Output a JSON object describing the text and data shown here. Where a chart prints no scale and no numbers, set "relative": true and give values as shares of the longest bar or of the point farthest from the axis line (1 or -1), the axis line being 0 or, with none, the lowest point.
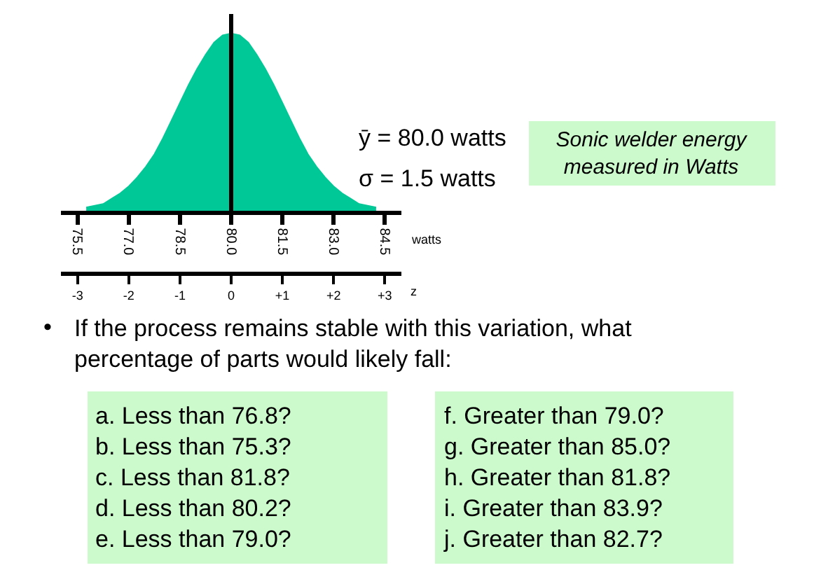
{
  "chart_data": {
    "type": "area",
    "relative": true,
    "color": "#00c896",
    "x": [
      75.75,
      76.0,
      76.25,
      76.5,
      76.75,
      77.0,
      77.25,
      77.5,
      77.75,
      78.0,
      78.25,
      78.5,
      78.75,
      79.0,
      79.25,
      79.5,
      79.75,
      80.0,
      80.25,
      80.5,
      80.75,
      81.0,
      81.25,
      81.5,
      81.75,
      82.0,
      82.25,
      82.5,
      82.75,
      83.0,
      83.25,
      83.5,
      83.75,
      84.0,
      84.25
    ],
    "values": [
      0.02,
      0.03,
      0.04,
      0.07,
      0.1,
      0.14,
      0.19,
      0.25,
      0.32,
      0.41,
      0.51,
      0.61,
      0.71,
      0.8,
      0.88,
      0.95,
      0.99,
      1.0,
      0.99,
      0.95,
      0.88,
      0.8,
      0.71,
      0.61,
      0.51,
      0.41,
      0.32,
      0.25,
      0.19,
      0.14,
      0.1,
      0.07,
      0.04,
      0.03,
      0.02
    ],
    "xlim": [
      75.0,
      85.0
    ],
    "xticks": [
      75.5,
      {
        "value": 77,
        "label": "77.0"
      },
      78.5,
      {
        "value": 80,
        "label": "80.0"
      },
      81.5,
      {
        "value": 83,
        "label": "83.0"
      },
      84.5
    ],
    "xlabel": "watts",
    "x2lim": [
      -3.33,
      3.33
    ],
    "x2ticks": [
      -3,
      -2,
      -1,
      0,
      {
        "value": 1,
        "label": "+1"
      },
      {
        "value": 2,
        "label": "+2"
      },
      {
        "value": 3,
        "label": "+3"
      }
    ],
    "x2label": "z",
    "ref_lines": [
      {
        "axis": "x",
        "value": 80,
        "color": "#000000"
      }
    ],
    "annotations": [
      "ȳ = 80.0 watts",
      "σ = 1.5 watts",
      "Sonic welder energy\nmeasured in Watts",
      "•",
      "If the process remains stable with this variation, what\npercentage of parts would likely fall:",
      "a. Less than 76.8?\nb. Less than 75.3?\nc. Less than 81.8?\nd. Less than 80.2?\ne. Less than 79.0?",
      "f. Greater than 79.0?\ng. Greater than 85.0?\nh. Greater than 81.8?\ni. Greater than 83.9?\nj. Greater than 82.7?"
    ]
  }
}
